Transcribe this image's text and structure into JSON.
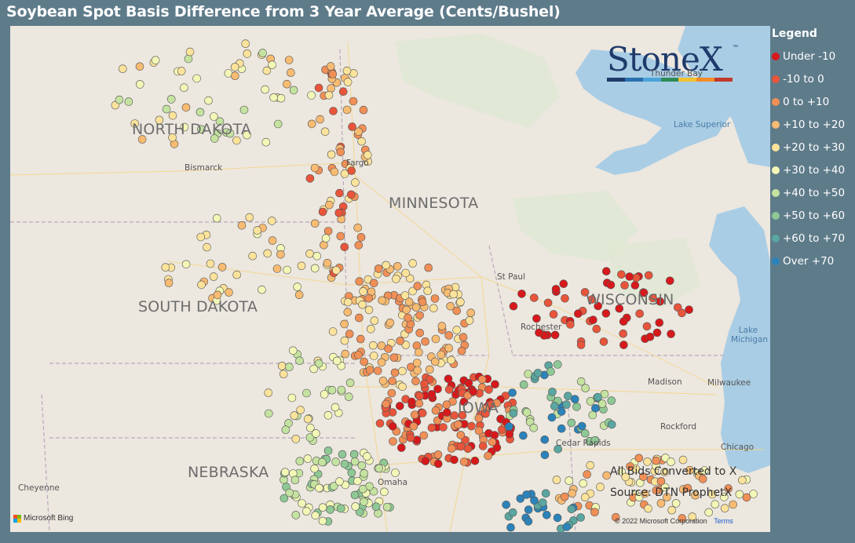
{
  "title": "Soybean Spot Basis Difference from 3 Year Average (Cents/Bushel)",
  "legend": {
    "title": "Legend",
    "items": [
      {
        "label": "Under -10",
        "color": "#d7191c"
      },
      {
        "label": "-10 to 0",
        "color": "#e8553a"
      },
      {
        "label": "0 to +10",
        "color": "#f08f56"
      },
      {
        "label": "+10 to +20",
        "color": "#f7bb72"
      },
      {
        "label": "+20 to +30",
        "color": "#fbe39b"
      },
      {
        "label": "+30 to +40",
        "color": "#f2f7b6"
      },
      {
        "label": "+40 to +50",
        "color": "#c5e3a0"
      },
      {
        "label": "+50 to +60",
        "color": "#8ec895"
      },
      {
        "label": "+60 to +70",
        "color": "#5aa6a0"
      },
      {
        "label": "Over +70",
        "color": "#2b83ba"
      }
    ]
  },
  "logo": {
    "text": "StoneX",
    "tm": "™",
    "bar_colors": [
      "#1f3a6b",
      "#2a6fb0",
      "#4aa3d9",
      "#2e8b57",
      "#f2c12e",
      "#f28c28",
      "#c0392b"
    ]
  },
  "states": [
    "NORTH DAKOTA",
    "MINNESOTA",
    "SOUTH DAKOTA",
    "WISCONSIN",
    "NEBRASKA",
    "IOWA"
  ],
  "cities": [
    "Bismarck",
    "Fargo",
    "St Paul",
    "Rochester",
    "Madison",
    "Milwaukee",
    "Rockford",
    "Cedar Rapids",
    "Omaha",
    "Chicago",
    "Cheyenne",
    "Thunder Bay"
  ],
  "water": [
    "Lake Superior",
    "Lake Michigan"
  ],
  "notes": {
    "line1": "All Bids Converted to X",
    "line2": "Source: DTN ProphetX"
  },
  "attribution": {
    "bing": "Microsoft Bing",
    "copyright": "© 2022 Microsoft Corporation",
    "terms": "Terms"
  }
}
